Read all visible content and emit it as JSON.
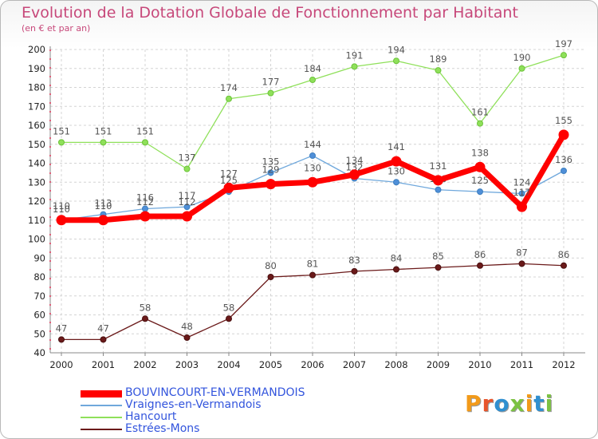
{
  "header": {
    "title": "Evolution de la Dotation Globale de Fonctionnement par Habitant",
    "subtitle": "(en € et par an)"
  },
  "logo": {
    "text": "Proxiti",
    "letter_colors": [
      "#f29a1a",
      "#e8552b",
      "#2f8fd0",
      "#7cc242",
      "#f29a1a",
      "#2f8fd0",
      "#7cc242"
    ]
  },
  "chart_data": {
    "type": "line",
    "title": "Evolution de la Dotation Globale de Fonctionnement par Habitant",
    "subtitle": "(en € et par an)",
    "x": [
      "2000",
      "2001",
      "2002",
      "2003",
      "2004",
      "2005",
      "2006",
      "2007",
      "2008",
      "2009",
      "2010",
      "2011",
      "2012"
    ],
    "ylim": [
      40,
      200
    ],
    "yticks": [
      "40",
      "50",
      "60",
      "70",
      "80",
      "90",
      "100",
      "110",
      "120",
      "130",
      "140",
      "150",
      "160",
      "170",
      "180",
      "190",
      "200"
    ],
    "grid": true,
    "legend_position": "bottom-left",
    "series": [
      {
        "name": "Hancourt",
        "color": "#8fe05a",
        "values": [
          151,
          151,
          151,
          137,
          174,
          177,
          184,
          191,
          194,
          189,
          161,
          190,
          197
        ],
        "labels": [
          "151",
          "151",
          "151",
          "137",
          "174",
          "177",
          "184",
          "191",
          "194",
          "189",
          "161",
          "190",
          "197"
        ]
      },
      {
        "name": "Vraignes-en-Vermandois",
        "color": "#6fa8dc",
        "values": [
          110,
          113,
          116,
          117,
          125,
          135,
          144,
          132,
          130,
          126,
          125,
          124,
          136
        ],
        "labels": [
          "110",
          "113",
          "116",
          "117",
          "125",
          "135",
          "144",
          "132",
          "130",
          "126",
          "125",
          "124",
          "136"
        ]
      },
      {
        "name": "Estrées-Mons",
        "color": "#6b1a1a",
        "values": [
          47,
          47,
          58,
          48,
          58,
          80,
          81,
          83,
          84,
          85,
          86,
          87,
          86
        ],
        "labels": [
          "47",
          "47",
          "58",
          "48",
          "58",
          "80",
          "81",
          "83",
          "84",
          "85",
          "86",
          "87",
          "86"
        ]
      },
      {
        "name": "BOUVINCOURT-EN-VERMANDOIS",
        "color": "#ff0000",
        "values": [
          110,
          110,
          112,
          112,
          127,
          129,
          130,
          134,
          141,
          131,
          138,
          117,
          155
        ],
        "labels": [
          "110",
          "110",
          "112",
          "112",
          "127",
          "129",
          "130",
          "134",
          "141",
          "131",
          "138",
          "117",
          "155"
        ]
      }
    ],
    "legend_order": [
      "BOUVINCOURT-EN-VERMANDOIS",
      "Vraignes-en-Vermandois",
      "Hancourt",
      "Estrées-Mons"
    ]
  }
}
